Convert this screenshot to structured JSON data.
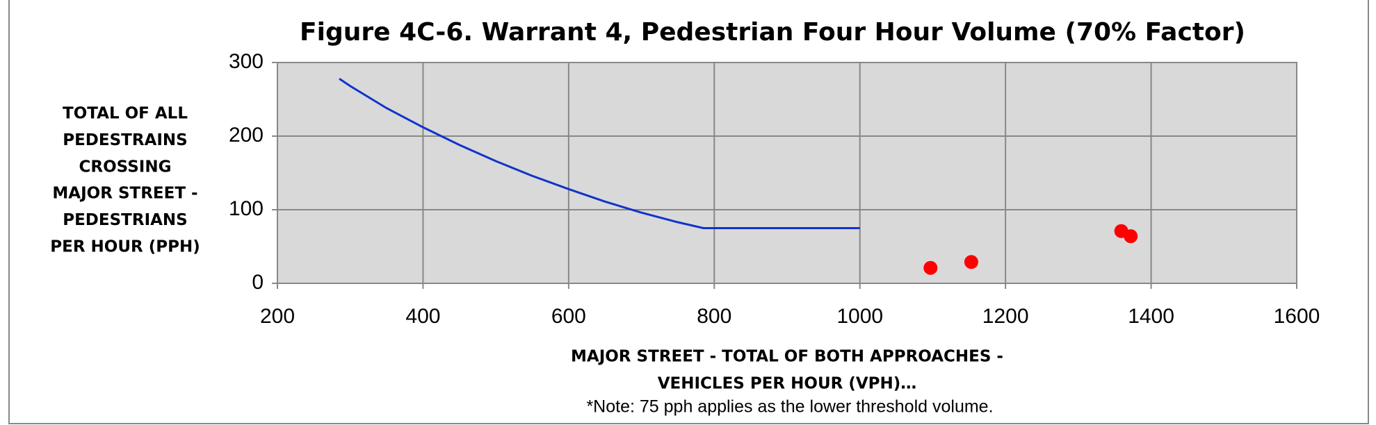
{
  "chart_data": {
    "type": "line",
    "title": "Figure 4C-6. Warrant 4, Pedestrian Four Hour Volume (70% Factor)",
    "y_label": [
      "TOTAL OF ALL",
      "PEDESTRAINS",
      "CROSSING",
      "MAJOR STREET -",
      "PEDESTRIANS",
      "PER HOUR (PPH)"
    ],
    "x_label": [
      "MAJOR STREET - TOTAL OF BOTH APPROACHES -",
      "VEHICLES PER HOUR (VPH)…"
    ],
    "note": "*Note: 75 pph applies as the lower threshold volume.",
    "xlim": [
      200,
      1600
    ],
    "xticks": [
      200,
      400,
      600,
      800,
      1000,
      1200,
      1400,
      1600
    ],
    "ylim": [
      0,
      300
    ],
    "yticks": [
      0,
      100,
      200,
      300
    ],
    "grid": true,
    "plot_background": "#d9d9d9",
    "series": [
      {
        "color": "#1133cc",
        "x": [
          285,
          300,
          350,
          400,
          450,
          500,
          550,
          600,
          650,
          700,
          750,
          785,
          1000
        ],
        "values": [
          278,
          268,
          238,
          212,
          188,
          166,
          146,
          128,
          111,
          96,
          83,
          75,
          75
        ]
      },
      {
        "color": "#ff0000",
        "marker": "circle",
        "line": false,
        "x": [
          1097,
          1153,
          1359,
          1372
        ],
        "values": [
          21,
          29,
          71,
          64
        ]
      }
    ]
  }
}
